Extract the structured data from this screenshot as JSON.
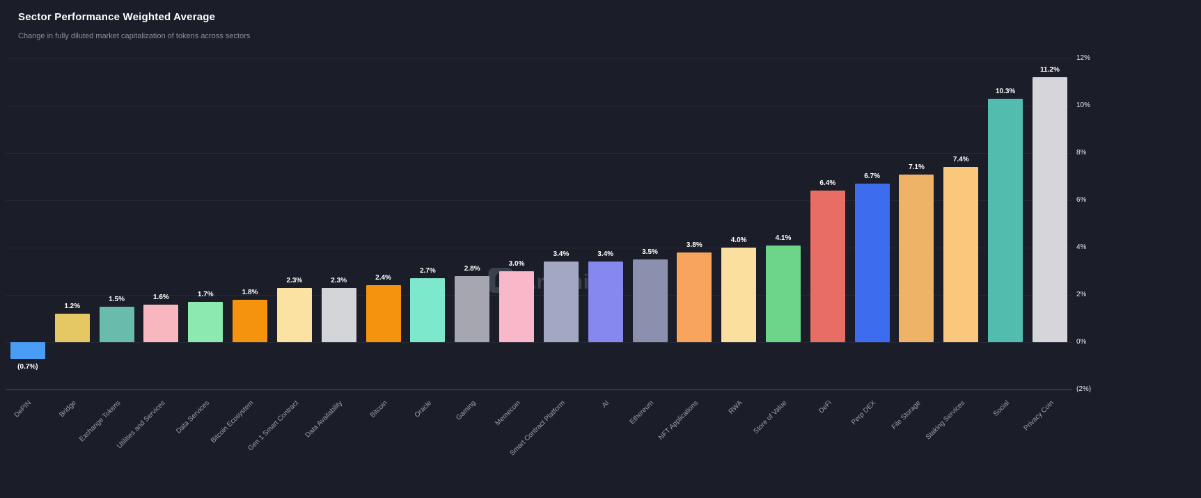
{
  "header": {
    "title": "Sector Performance Weighted Average",
    "subtitle": "Change in fully diluted market capitalization of tokens across sectors"
  },
  "watermark": {
    "text": "Artemis"
  },
  "chart_data": {
    "type": "bar",
    "title": "Sector Performance Weighted Average",
    "subtitle": "Change in fully diluted market capitalization of tokens across sectors",
    "xlabel": "",
    "ylabel": "",
    "ylim": [
      -2,
      12
    ],
    "grid": true,
    "legend": false,
    "ytick_labels": [
      {
        "value": 12,
        "label": "12%"
      },
      {
        "value": 10,
        "label": "10%"
      },
      {
        "value": 8,
        "label": "8%"
      },
      {
        "value": 6,
        "label": "6%"
      },
      {
        "value": 4,
        "label": "4%"
      },
      {
        "value": 2,
        "label": "2%"
      },
      {
        "value": 0,
        "label": "0%"
      },
      {
        "value": -2,
        "label": "(2%)"
      }
    ],
    "categories": [
      "DePIN",
      "Bridge",
      "Exchange Tokens",
      "Utilities and Services",
      "Data Services",
      "Bitcoin Ecosystem",
      "Gen 1 Smart Contract",
      "Data Availability",
      "Bitcoin",
      "Oracle",
      "Gaming",
      "Memecoin",
      "Smart Contract Platform",
      "AI",
      "Ethereum",
      "NFT Applications",
      "RWA",
      "Store of Value",
      "DeFi",
      "Perp DEX",
      "File Storage",
      "Staking Services",
      "Social",
      "Privacy Coin"
    ],
    "values": [
      -0.7,
      1.2,
      1.5,
      1.6,
      1.7,
      1.8,
      2.3,
      2.3,
      2.4,
      2.7,
      2.8,
      3.0,
      3.4,
      3.4,
      3.5,
      3.8,
      4.0,
      4.1,
      6.4,
      6.7,
      7.1,
      7.4,
      10.3,
      11.2
    ],
    "value_labels": [
      "(0.7%)",
      "1.2%",
      "1.5%",
      "1.6%",
      "1.7%",
      "1.8%",
      "2.3%",
      "2.3%",
      "2.4%",
      "2.7%",
      "2.8%",
      "3.0%",
      "3.4%",
      "3.4%",
      "3.5%",
      "3.8%",
      "4.0%",
      "4.1%",
      "6.4%",
      "6.7%",
      "7.1%",
      "7.4%",
      "10.3%",
      "11.2%"
    ],
    "colors": [
      "#4A9DF4",
      "#E5C863",
      "#69BCAB",
      "#F8B6BE",
      "#8DEAAF",
      "#F5930E",
      "#FBE2A2",
      "#D4D5D9",
      "#F5930E",
      "#7DE8CB",
      "#A5A6B0",
      "#F9B8C9",
      "#A3A7C3",
      "#8687EF",
      "#8A90AD",
      "#F9A45C",
      "#FBDF9F",
      "#6CD589",
      "#E76D65",
      "#3D6CEF",
      "#EFB368",
      "#F9C87D",
      "#52BDAE",
      "#D6D6DA"
    ]
  }
}
